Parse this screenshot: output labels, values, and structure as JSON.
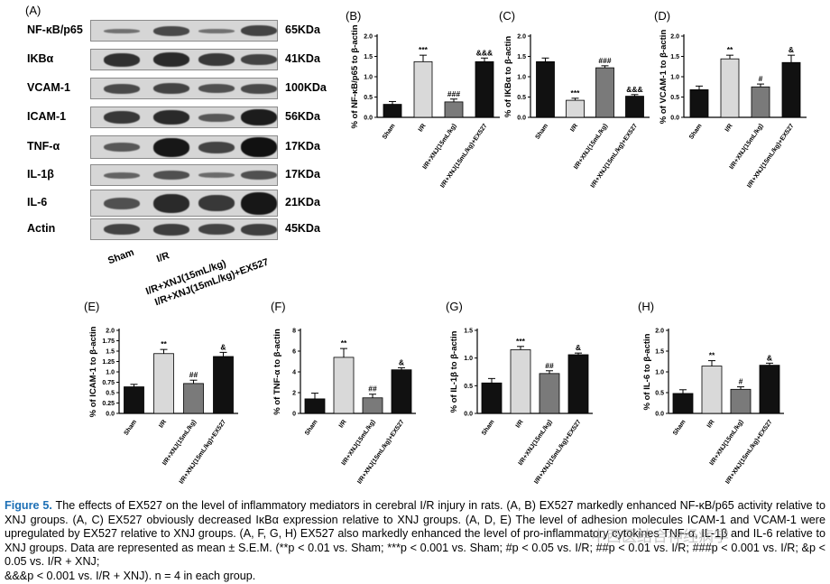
{
  "blot": {
    "letter": "(A)",
    "rows": [
      {
        "name": "NF-κB/p65",
        "size": "65KDa"
      },
      {
        "name": "IKBα",
        "size": "41KDa"
      },
      {
        "name": "VCAM-1",
        "size": "100KDa"
      },
      {
        "name": "ICAM-1",
        "size": "56KDa"
      },
      {
        "name": "TNF-α",
        "size": "17KDa"
      },
      {
        "name": "IL-1β",
        "size": "17KDa"
      },
      {
        "name": "IL-6",
        "size": "21KDa"
      },
      {
        "name": "Actin",
        "size": "45KDa"
      }
    ],
    "lanes": [
      "Sham",
      "I/R",
      "I/R+XNJ(15mL/kg)",
      "I/R+XNJ(15mL/kg)+EX527"
    ]
  },
  "chart_data": [
    {
      "panel": "(B)",
      "type": "bar",
      "ylabel": "% of NF-κB/p65 to β-actin",
      "ylim": [
        0,
        2.0
      ],
      "yticks": [
        0.0,
        0.5,
        1.0,
        1.5,
        2.0
      ],
      "categories": [
        "Sham",
        "I/R",
        "I/R+XNJ(15mL/kg)",
        "I/R+XNJ(15mL/kg)+EX527"
      ],
      "values": [
        0.32,
        1.37,
        0.38,
        1.37
      ],
      "errors": [
        0.07,
        0.16,
        0.07,
        0.09
      ],
      "annotations": [
        "",
        "***",
        "###",
        "&&&"
      ],
      "colors": [
        "#111111",
        "#d9d9d9",
        "#7a7a7a",
        "#111111"
      ]
    },
    {
      "panel": "(C)",
      "type": "bar",
      "ylabel": "% of IKBα to β-actin",
      "ylim": [
        0,
        2.0
      ],
      "yticks": [
        0.0,
        0.5,
        1.0,
        1.5,
        2.0
      ],
      "categories": [
        "Sham",
        "I/R",
        "I/R+XNJ(15mL/kg)",
        "I/R+XNJ(15mL/kg)+EX527"
      ],
      "values": [
        1.37,
        0.42,
        1.22,
        0.52
      ],
      "errors": [
        0.09,
        0.05,
        0.05,
        0.04
      ],
      "annotations": [
        "",
        "***",
        "###",
        "&&&"
      ],
      "colors": [
        "#111111",
        "#d9d9d9",
        "#7a7a7a",
        "#111111"
      ]
    },
    {
      "panel": "(D)",
      "type": "bar",
      "ylabel": "% of VCAM-1 to β-actin",
      "ylim": [
        0,
        2.0
      ],
      "yticks": [
        0.0,
        0.5,
        1.0,
        1.5,
        2.0
      ],
      "categories": [
        "Sham",
        "I/R",
        "I/R+XNJ(15mL/kg)",
        "I/R+XNJ(15mL/kg)+EX527"
      ],
      "values": [
        0.68,
        1.44,
        0.75,
        1.35
      ],
      "errors": [
        0.09,
        0.09,
        0.07,
        0.18
      ],
      "annotations": [
        "",
        "**",
        "#",
        "&"
      ],
      "colors": [
        "#111111",
        "#d9d9d9",
        "#7a7a7a",
        "#111111"
      ]
    },
    {
      "panel": "(E)",
      "type": "bar",
      "ylabel": "% of ICAM-1 to β-actin",
      "ylim": [
        0,
        2.0
      ],
      "yticks": [
        0.0,
        0.25,
        0.5,
        0.75,
        1.0,
        1.25,
        1.5,
        1.75,
        2.0
      ],
      "categories": [
        "Sham",
        "I/R",
        "I/R+XNJ(15mL/kg)",
        "I/R+XNJ(15mL/kg)+EX527"
      ],
      "values": [
        0.64,
        1.44,
        0.72,
        1.37
      ],
      "errors": [
        0.06,
        0.1,
        0.08,
        0.1
      ],
      "annotations": [
        "",
        "**",
        "##",
        "&"
      ],
      "colors": [
        "#111111",
        "#d9d9d9",
        "#7a7a7a",
        "#111111"
      ]
    },
    {
      "panel": "(F)",
      "type": "bar",
      "ylabel": "% of TNF-α to β-actin",
      "ylim": [
        0,
        8
      ],
      "yticks": [
        0,
        2,
        4,
        6,
        8
      ],
      "categories": [
        "Sham",
        "I/R",
        "I/R+XNJ(15mL/kg)",
        "I/R+XNJ(15mL/kg)+EX527"
      ],
      "values": [
        1.4,
        5.4,
        1.5,
        4.2
      ],
      "errors": [
        0.55,
        0.85,
        0.35,
        0.2
      ],
      "annotations": [
        "",
        "**",
        "##",
        "&"
      ],
      "colors": [
        "#111111",
        "#d9d9d9",
        "#7a7a7a",
        "#111111"
      ]
    },
    {
      "panel": "(G)",
      "type": "bar",
      "ylabel": "% of IL-1β to β-actin",
      "ylim": [
        0,
        1.5
      ],
      "yticks": [
        0.0,
        0.5,
        1.0,
        1.5
      ],
      "categories": [
        "Sham",
        "I/R",
        "I/R+XNJ(15mL/kg)",
        "I/R+XNJ(15mL/kg)+EX527"
      ],
      "values": [
        0.55,
        1.15,
        0.72,
        1.06
      ],
      "errors": [
        0.08,
        0.06,
        0.05,
        0.03
      ],
      "annotations": [
        "",
        "***",
        "##",
        "&"
      ],
      "colors": [
        "#111111",
        "#d9d9d9",
        "#7a7a7a",
        "#111111"
      ]
    },
    {
      "panel": "(H)",
      "type": "bar",
      "ylabel": "% of IL-6 to β-actin",
      "ylim": [
        0,
        2.0
      ],
      "yticks": [
        0.0,
        0.5,
        1.0,
        1.5,
        2.0
      ],
      "categories": [
        "Sham",
        "I/R",
        "I/R+XNJ(15mL/kg)",
        "I/R+XNJ(15mL/kg)+EX527"
      ],
      "values": [
        0.48,
        1.14,
        0.58,
        1.16
      ],
      "errors": [
        0.09,
        0.13,
        0.06,
        0.05
      ],
      "annotations": [
        "",
        "**",
        "#",
        "&"
      ],
      "colors": [
        "#111111",
        "#d9d9d9",
        "#7a7a7a",
        "#111111"
      ]
    }
  ],
  "caption": {
    "head": "Figure 5.",
    "line1": "The effects of EX527 on the level of inflammatory mediators in cerebral I/R injury in rats. (A, B) EX527 markedly enhanced NF-κB/p65 activity relative to XNJ groups. (A, C) EX527 obviously decreased IκBα expression relative to XNJ groups. (A, D, E) The level of adhesion molecules ICAM-1 and VCAM-1 were upregulated by EX527 relative to XNJ groups. (A, F, G, H) EX527 also markedly enhanced the level of pro-inflammatory cytokines TNF-α, IL-1β and IL-6 relative to XNJ groups. Data are represented as mean ± S.E.M. (**p < 0.01 vs. Sham; ***p < 0.001 vs. Sham; #p < 0.05 vs. I/R; ##p < 0.01 vs. I/R; ###p < 0.001 vs. I/R; &p < 0.05 vs. I/R + XNJ;",
    "line2": "&&&p < 0.001 vs. I/R + XNJ). n = 4 in each group."
  },
  "watermark": "中西医结合神经病学"
}
